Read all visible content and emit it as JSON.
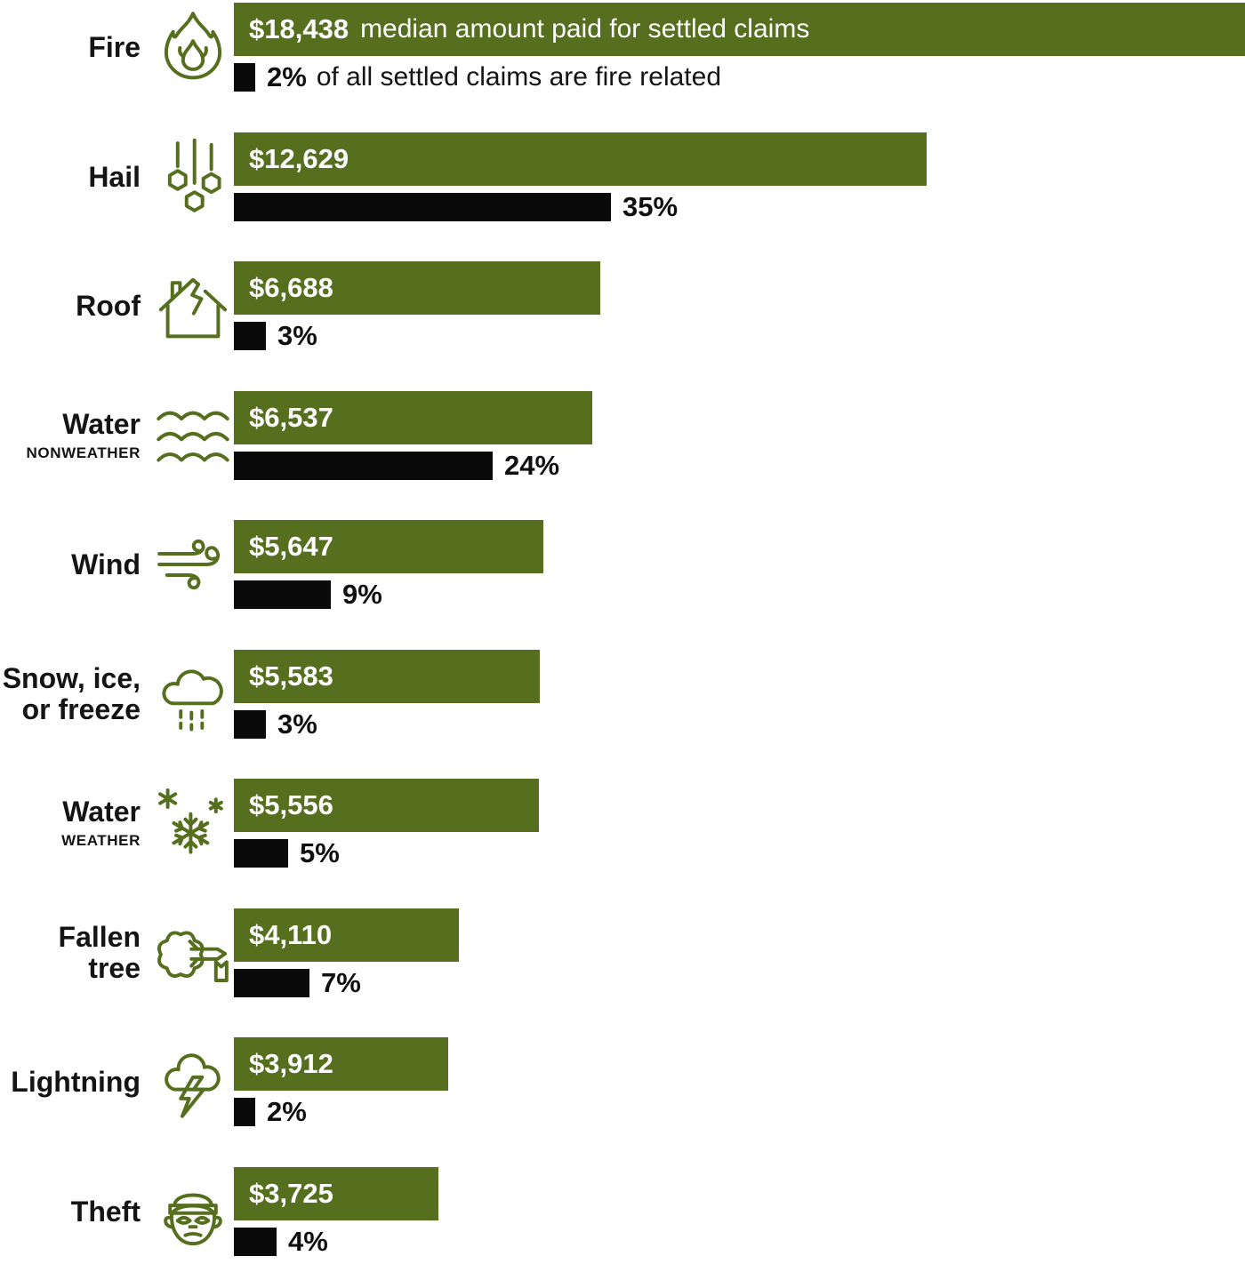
{
  "colors": {
    "bar_green": "#566F1E",
    "bar_black": "#0A0A0A",
    "icon_green": "#566F1E",
    "text_dark": "#141414",
    "text_white": "#FFFFFF"
  },
  "chart_data": {
    "type": "bar",
    "orientation": "horizontal",
    "grid": false,
    "legend": "none",
    "categories": [
      "Fire",
      "Hail",
      "Roof",
      "Water nonweather",
      "Wind",
      "Snow, ice, or freeze",
      "Water weather",
      "Fallen tree",
      "Lightning",
      "Theft"
    ],
    "series": [
      {
        "name": "Median amount paid for settled claims (USD)",
        "color": "#566F1E",
        "values": [
          18438,
          12629,
          6688,
          6537,
          5647,
          5583,
          5556,
          4110,
          3912,
          3725
        ]
      },
      {
        "name": "Share of all settled claims (%)",
        "color": "#0A0A0A",
        "values": [
          2,
          35,
          3,
          24,
          9,
          3,
          5,
          7,
          2,
          4
        ]
      }
    ],
    "annotations": {
      "amount_note": "median amount paid for settled claims",
      "percent_note": "of all settled claims are fire related"
    },
    "rows": [
      {
        "icon": "fire-icon",
        "label_lines": [
          "Fire"
        ],
        "sublabel": "",
        "amount": 18438,
        "amount_label": "$18,438",
        "amount_suffix": "median amount paid for settled claims",
        "percent": 2,
        "percent_label": "2%",
        "percent_suffix": "of all settled claims are fire related"
      },
      {
        "icon": "hail-icon",
        "label_lines": [
          "Hail"
        ],
        "sublabel": "",
        "amount": 12629,
        "amount_label": "$12,629",
        "amount_suffix": "",
        "percent": 35,
        "percent_label": "35%",
        "percent_suffix": ""
      },
      {
        "icon": "roof-icon",
        "label_lines": [
          "Roof"
        ],
        "sublabel": "",
        "amount": 6688,
        "amount_label": "$6,688",
        "amount_suffix": "",
        "percent": 3,
        "percent_label": "3%",
        "percent_suffix": ""
      },
      {
        "icon": "water-waves-icon",
        "label_lines": [
          "Water"
        ],
        "sublabel": "NONWEATHER",
        "amount": 6537,
        "amount_label": "$6,537",
        "amount_suffix": "",
        "percent": 24,
        "percent_label": "24%",
        "percent_suffix": ""
      },
      {
        "icon": "wind-icon",
        "label_lines": [
          "Wind"
        ],
        "sublabel": "",
        "amount": 5647,
        "amount_label": "$5,647",
        "amount_suffix": "",
        "percent": 9,
        "percent_label": "9%",
        "percent_suffix": ""
      },
      {
        "icon": "snow-cloud-icon",
        "label_lines": [
          "Snow, ice,",
          "or freeze"
        ],
        "sublabel": "",
        "amount": 5583,
        "amount_label": "$5,583",
        "amount_suffix": "",
        "percent": 3,
        "percent_label": "3%",
        "percent_suffix": ""
      },
      {
        "icon": "snowflake-icon",
        "label_lines": [
          "Water"
        ],
        "sublabel": "WEATHER",
        "amount": 5556,
        "amount_label": "$5,556",
        "amount_suffix": "",
        "percent": 5,
        "percent_label": "5%",
        "percent_suffix": ""
      },
      {
        "icon": "fallen-tree-icon",
        "label_lines": [
          "Fallen",
          "tree"
        ],
        "sublabel": "",
        "amount": 4110,
        "amount_label": "$4,110",
        "amount_suffix": "",
        "percent": 7,
        "percent_label": "7%",
        "percent_suffix": ""
      },
      {
        "icon": "lightning-cloud-icon",
        "label_lines": [
          "Lightning"
        ],
        "sublabel": "",
        "amount": 3912,
        "amount_label": "$3,912",
        "amount_suffix": "",
        "percent": 2,
        "percent_label": "2%",
        "percent_suffix": ""
      },
      {
        "icon": "burglar-icon",
        "label_lines": [
          "Theft"
        ],
        "sublabel": "",
        "amount": 3725,
        "amount_label": "$3,725",
        "amount_suffix": "",
        "percent": 4,
        "percent_label": "4%",
        "percent_suffix": ""
      }
    ]
  }
}
